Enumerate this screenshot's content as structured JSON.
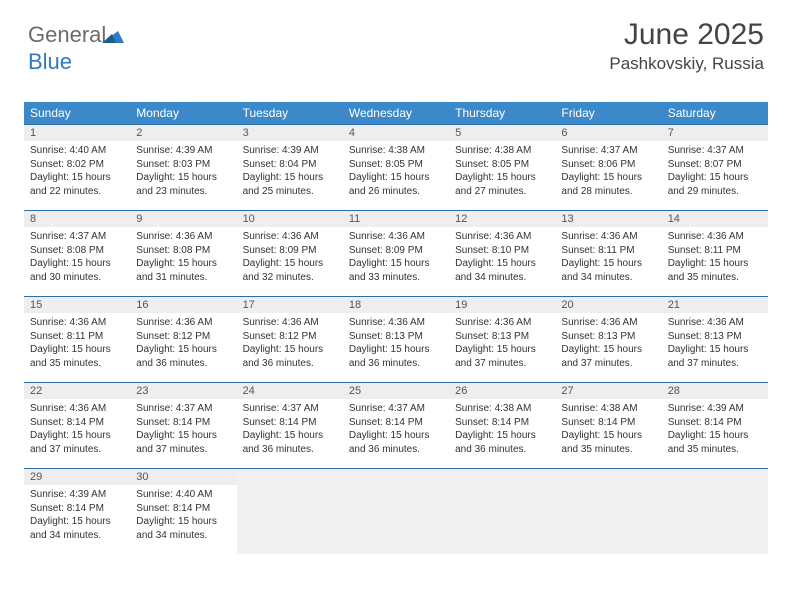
{
  "logo": {
    "text_gray": "General",
    "text_blue": "Blue"
  },
  "header": {
    "month_title": "June 2025",
    "location": "Pashkovskiy, Russia"
  },
  "colors": {
    "header_bar": "#3c89c9",
    "week_divider": "#2b6da6",
    "daynum_bg": "#eeeeee",
    "empty_bg": "#f0f0f0",
    "text": "#333333",
    "logo_gray": "#6b6b6b",
    "logo_blue": "#2f7ac0"
  },
  "typography": {
    "month_title_fontsize": 30,
    "location_fontsize": 17,
    "dow_fontsize": 12,
    "daynum_fontsize": 11,
    "body_fontsize": 10
  },
  "calendar": {
    "days_of_week": [
      "Sunday",
      "Monday",
      "Tuesday",
      "Wednesday",
      "Thursday",
      "Friday",
      "Saturday"
    ],
    "weeks": [
      [
        {
          "num": "1",
          "sunrise": "Sunrise: 4:40 AM",
          "sunset": "Sunset: 8:02 PM",
          "daylight": "Daylight: 15 hours and 22 minutes."
        },
        {
          "num": "2",
          "sunrise": "Sunrise: 4:39 AM",
          "sunset": "Sunset: 8:03 PM",
          "daylight": "Daylight: 15 hours and 23 minutes."
        },
        {
          "num": "3",
          "sunrise": "Sunrise: 4:39 AM",
          "sunset": "Sunset: 8:04 PM",
          "daylight": "Daylight: 15 hours and 25 minutes."
        },
        {
          "num": "4",
          "sunrise": "Sunrise: 4:38 AM",
          "sunset": "Sunset: 8:05 PM",
          "daylight": "Daylight: 15 hours and 26 minutes."
        },
        {
          "num": "5",
          "sunrise": "Sunrise: 4:38 AM",
          "sunset": "Sunset: 8:05 PM",
          "daylight": "Daylight: 15 hours and 27 minutes."
        },
        {
          "num": "6",
          "sunrise": "Sunrise: 4:37 AM",
          "sunset": "Sunset: 8:06 PM",
          "daylight": "Daylight: 15 hours and 28 minutes."
        },
        {
          "num": "7",
          "sunrise": "Sunrise: 4:37 AM",
          "sunset": "Sunset: 8:07 PM",
          "daylight": "Daylight: 15 hours and 29 minutes."
        }
      ],
      [
        {
          "num": "8",
          "sunrise": "Sunrise: 4:37 AM",
          "sunset": "Sunset: 8:08 PM",
          "daylight": "Daylight: 15 hours and 30 minutes."
        },
        {
          "num": "9",
          "sunrise": "Sunrise: 4:36 AM",
          "sunset": "Sunset: 8:08 PM",
          "daylight": "Daylight: 15 hours and 31 minutes."
        },
        {
          "num": "10",
          "sunrise": "Sunrise: 4:36 AM",
          "sunset": "Sunset: 8:09 PM",
          "daylight": "Daylight: 15 hours and 32 minutes."
        },
        {
          "num": "11",
          "sunrise": "Sunrise: 4:36 AM",
          "sunset": "Sunset: 8:09 PM",
          "daylight": "Daylight: 15 hours and 33 minutes."
        },
        {
          "num": "12",
          "sunrise": "Sunrise: 4:36 AM",
          "sunset": "Sunset: 8:10 PM",
          "daylight": "Daylight: 15 hours and 34 minutes."
        },
        {
          "num": "13",
          "sunrise": "Sunrise: 4:36 AM",
          "sunset": "Sunset: 8:11 PM",
          "daylight": "Daylight: 15 hours and 34 minutes."
        },
        {
          "num": "14",
          "sunrise": "Sunrise: 4:36 AM",
          "sunset": "Sunset: 8:11 PM",
          "daylight": "Daylight: 15 hours and 35 minutes."
        }
      ],
      [
        {
          "num": "15",
          "sunrise": "Sunrise: 4:36 AM",
          "sunset": "Sunset: 8:11 PM",
          "daylight": "Daylight: 15 hours and 35 minutes."
        },
        {
          "num": "16",
          "sunrise": "Sunrise: 4:36 AM",
          "sunset": "Sunset: 8:12 PM",
          "daylight": "Daylight: 15 hours and 36 minutes."
        },
        {
          "num": "17",
          "sunrise": "Sunrise: 4:36 AM",
          "sunset": "Sunset: 8:12 PM",
          "daylight": "Daylight: 15 hours and 36 minutes."
        },
        {
          "num": "18",
          "sunrise": "Sunrise: 4:36 AM",
          "sunset": "Sunset: 8:13 PM",
          "daylight": "Daylight: 15 hours and 36 minutes."
        },
        {
          "num": "19",
          "sunrise": "Sunrise: 4:36 AM",
          "sunset": "Sunset: 8:13 PM",
          "daylight": "Daylight: 15 hours and 37 minutes."
        },
        {
          "num": "20",
          "sunrise": "Sunrise: 4:36 AM",
          "sunset": "Sunset: 8:13 PM",
          "daylight": "Daylight: 15 hours and 37 minutes."
        },
        {
          "num": "21",
          "sunrise": "Sunrise: 4:36 AM",
          "sunset": "Sunset: 8:13 PM",
          "daylight": "Daylight: 15 hours and 37 minutes."
        }
      ],
      [
        {
          "num": "22",
          "sunrise": "Sunrise: 4:36 AM",
          "sunset": "Sunset: 8:14 PM",
          "daylight": "Daylight: 15 hours and 37 minutes."
        },
        {
          "num": "23",
          "sunrise": "Sunrise: 4:37 AM",
          "sunset": "Sunset: 8:14 PM",
          "daylight": "Daylight: 15 hours and 37 minutes."
        },
        {
          "num": "24",
          "sunrise": "Sunrise: 4:37 AM",
          "sunset": "Sunset: 8:14 PM",
          "daylight": "Daylight: 15 hours and 36 minutes."
        },
        {
          "num": "25",
          "sunrise": "Sunrise: 4:37 AM",
          "sunset": "Sunset: 8:14 PM",
          "daylight": "Daylight: 15 hours and 36 minutes."
        },
        {
          "num": "26",
          "sunrise": "Sunrise: 4:38 AM",
          "sunset": "Sunset: 8:14 PM",
          "daylight": "Daylight: 15 hours and 36 minutes."
        },
        {
          "num": "27",
          "sunrise": "Sunrise: 4:38 AM",
          "sunset": "Sunset: 8:14 PM",
          "daylight": "Daylight: 15 hours and 35 minutes."
        },
        {
          "num": "28",
          "sunrise": "Sunrise: 4:39 AM",
          "sunset": "Sunset: 8:14 PM",
          "daylight": "Daylight: 15 hours and 35 minutes."
        }
      ],
      [
        {
          "num": "29",
          "sunrise": "Sunrise: 4:39 AM",
          "sunset": "Sunset: 8:14 PM",
          "daylight": "Daylight: 15 hours and 34 minutes."
        },
        {
          "num": "30",
          "sunrise": "Sunrise: 4:40 AM",
          "sunset": "Sunset: 8:14 PM",
          "daylight": "Daylight: 15 hours and 34 minutes."
        },
        null,
        null,
        null,
        null,
        null
      ]
    ]
  }
}
